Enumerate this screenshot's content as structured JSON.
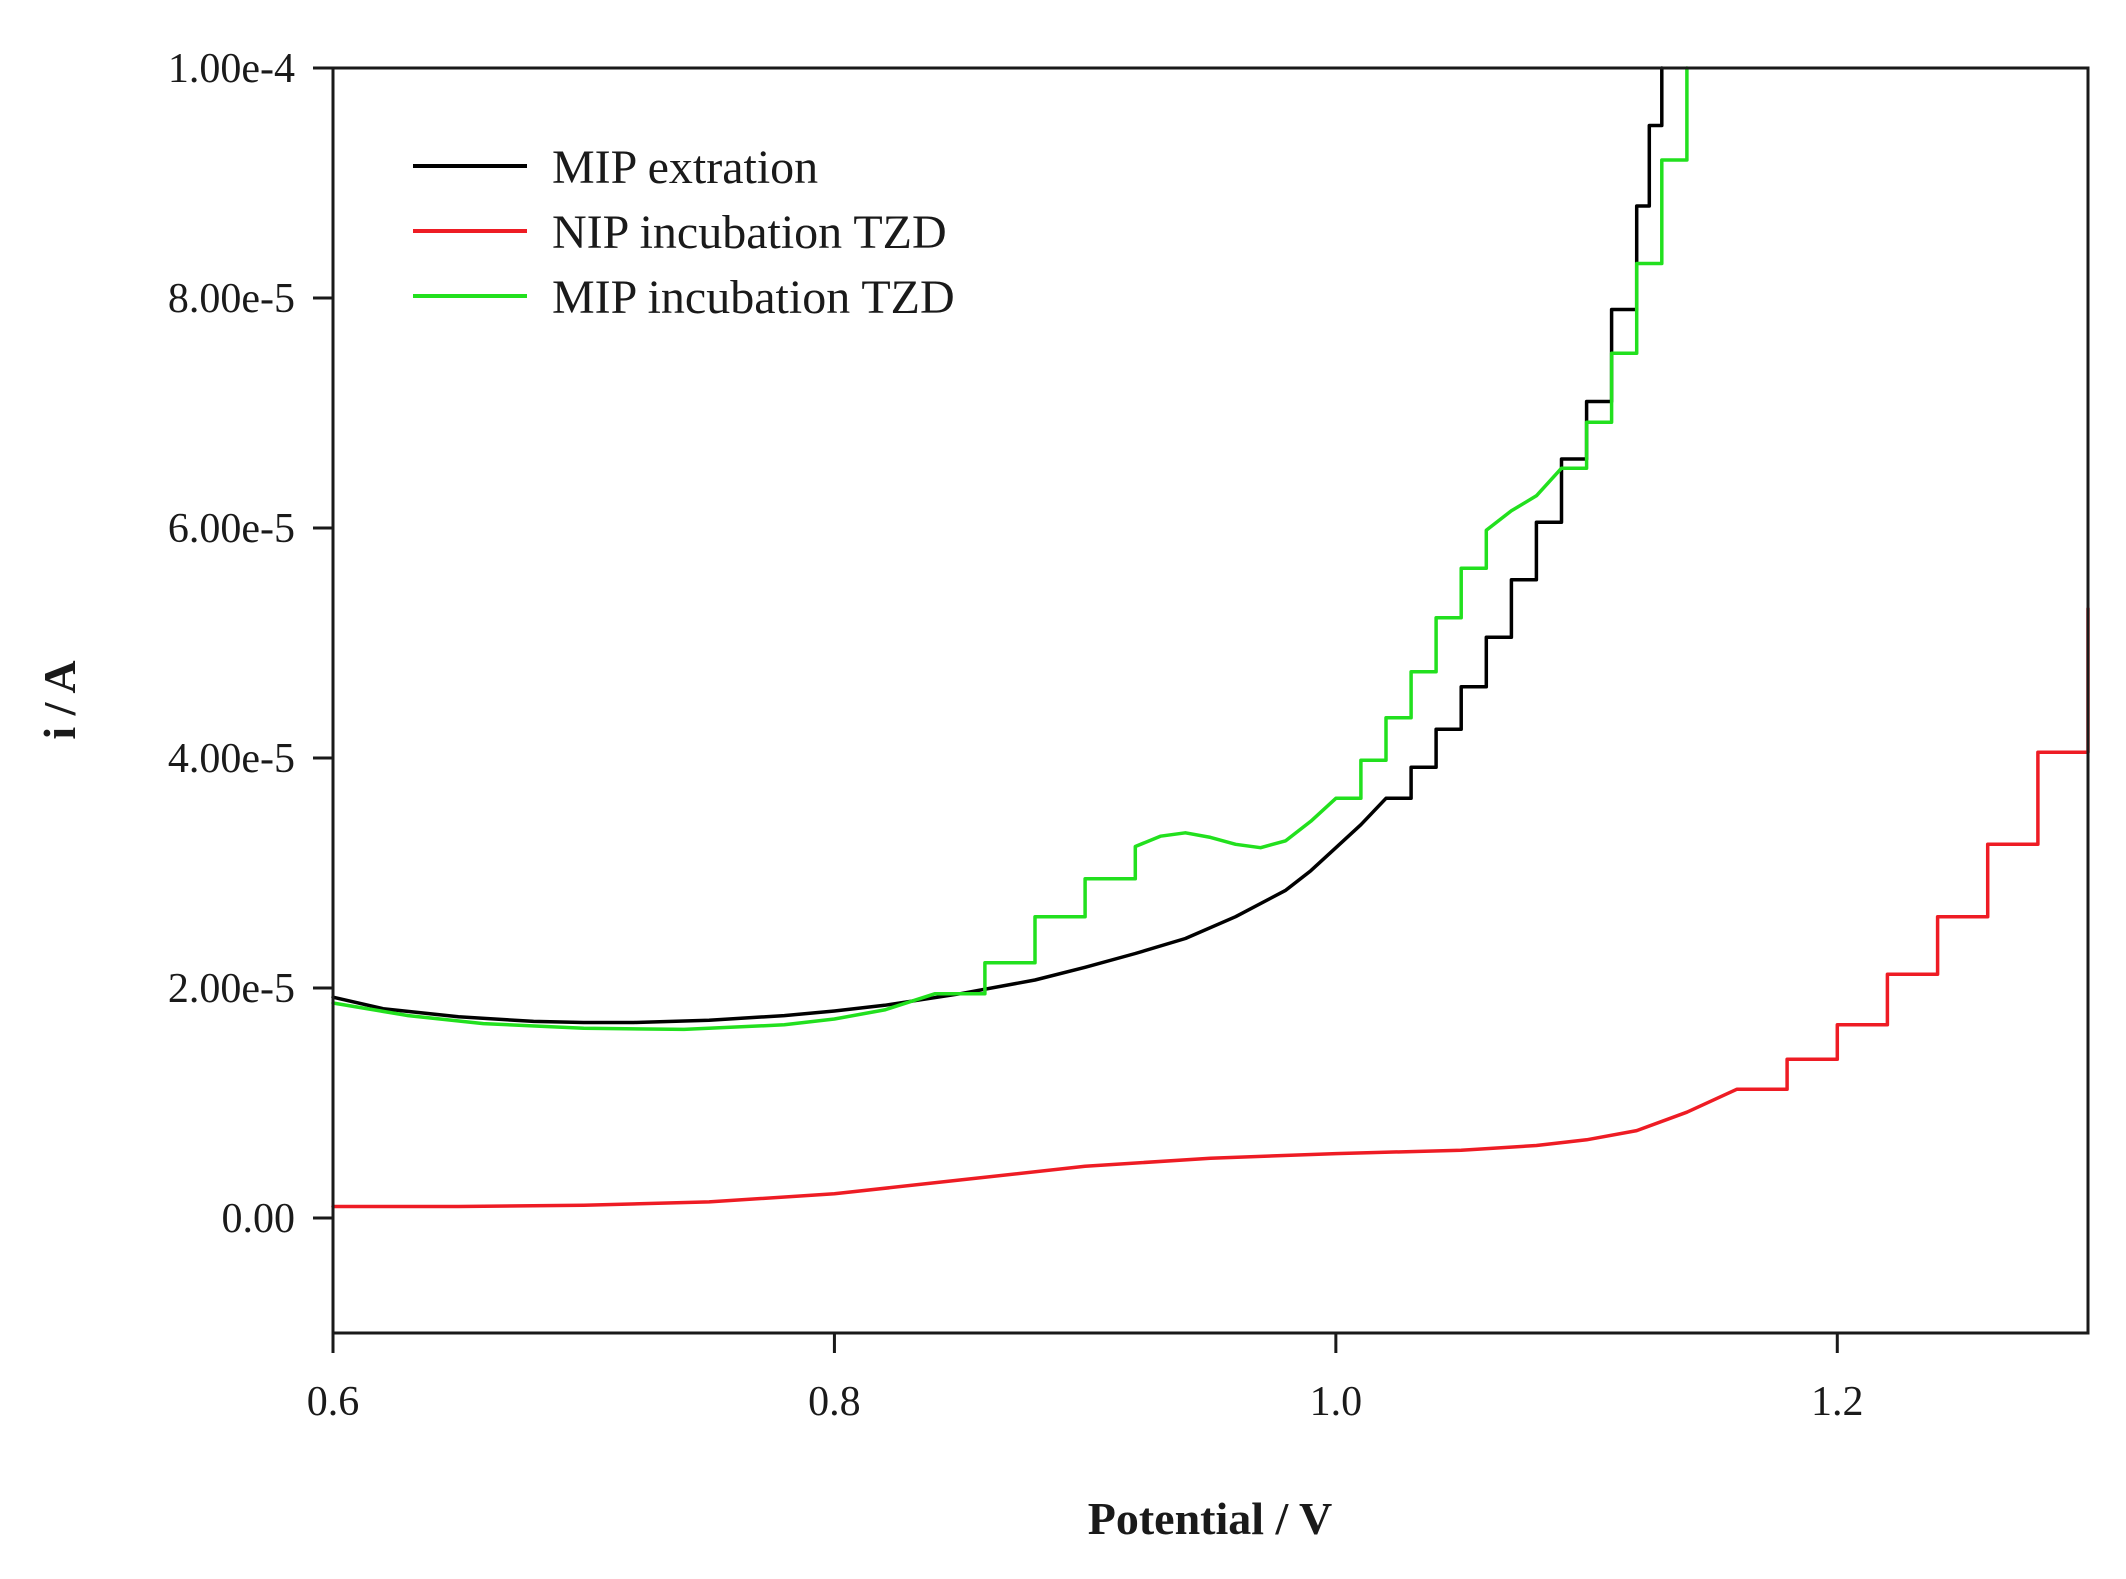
{
  "chart_data": {
    "type": "line",
    "title": "",
    "xlabel": "Potential / V",
    "ylabel": "i / A",
    "xlim": [
      0.6,
      1.3
    ],
    "ylim": [
      -1e-05,
      0.0001
    ],
    "xticks": [
      0.6,
      0.8,
      1.0,
      1.2
    ],
    "xtick_labels": [
      "0.6",
      "0.8",
      "1.0",
      "1.2"
    ],
    "yticks": [
      0,
      2e-05,
      4e-05,
      6e-05,
      8e-05,
      0.0001
    ],
    "ytick_labels": [
      "0.00",
      "2.00e-5",
      "4.00e-5",
      "6.00e-5",
      "8.00e-5",
      "1.00e-4"
    ],
    "grid": false,
    "legend_position": "top-left",
    "series": [
      {
        "name": "MIP extration",
        "color": "#000000",
        "x": [
          0.6,
          0.62,
          0.65,
          0.68,
          0.7,
          0.72,
          0.75,
          0.78,
          0.8,
          0.82,
          0.85,
          0.88,
          0.9,
          0.92,
          0.94,
          0.96,
          0.98,
          0.99,
          1.0,
          1.01,
          1.02,
          1.03,
          1.04,
          1.05,
          1.06,
          1.07,
          1.08,
          1.09,
          1.1,
          1.11,
          1.12,
          1.125,
          1.13
        ],
        "y": [
          1.92e-05,
          1.82e-05,
          1.75e-05,
          1.71e-05,
          1.7e-05,
          1.7e-05,
          1.72e-05,
          1.76e-05,
          1.8e-05,
          1.85e-05,
          1.95e-05,
          2.07e-05,
          2.18e-05,
          2.3e-05,
          2.43e-05,
          2.62e-05,
          2.85e-05,
          3.02e-05,
          3.22e-05,
          3.42e-05,
          3.65e-05,
          3.92e-05,
          4.25e-05,
          4.62e-05,
          5.05e-05,
          5.55e-05,
          6.05e-05,
          6.6e-05,
          7.1e-05,
          7.9e-05,
          8.8e-05,
          9.5e-05,
          0.0001
        ]
      },
      {
        "name": "NIP incubation TZD",
        "color": "#ee1c24",
        "x": [
          0.6,
          0.65,
          0.7,
          0.75,
          0.8,
          0.85,
          0.9,
          0.95,
          1.0,
          1.05,
          1.08,
          1.1,
          1.12,
          1.14,
          1.16,
          1.18,
          1.2,
          1.22,
          1.24,
          1.26,
          1.28,
          1.3
        ],
        "y": [
          1e-06,
          1e-06,
          1.1e-06,
          1.4e-06,
          2.1e-06,
          3.3e-06,
          4.5e-06,
          5.2e-06,
          5.6e-06,
          5.9e-06,
          6.3e-06,
          6.8e-06,
          7.6e-06,
          9.2e-06,
          1.12e-05,
          1.38e-05,
          1.68e-05,
          2.12e-05,
          2.62e-05,
          3.25e-05,
          4.05e-05,
          5.3e-05
        ]
      },
      {
        "name": "MIP incubation TZD",
        "color": "#22e01e",
        "x": [
          0.6,
          0.63,
          0.66,
          0.7,
          0.74,
          0.78,
          0.8,
          0.82,
          0.84,
          0.86,
          0.88,
          0.9,
          0.92,
          0.93,
          0.94,
          0.95,
          0.96,
          0.97,
          0.98,
          0.99,
          1.0,
          1.01,
          1.02,
          1.03,
          1.04,
          1.05,
          1.06,
          1.07,
          1.08,
          1.09,
          1.1,
          1.11,
          1.12,
          1.13,
          1.14
        ],
        "y": [
          1.87e-05,
          1.76e-05,
          1.69e-05,
          1.65e-05,
          1.64e-05,
          1.68e-05,
          1.73e-05,
          1.81e-05,
          1.95e-05,
          2.22e-05,
          2.62e-05,
          2.95e-05,
          3.23e-05,
          3.32e-05,
          3.35e-05,
          3.31e-05,
          3.25e-05,
          3.22e-05,
          3.28e-05,
          3.45e-05,
          3.65e-05,
          3.98e-05,
          4.35e-05,
          4.75e-05,
          5.22e-05,
          5.65e-05,
          5.98e-05,
          6.15e-05,
          6.28e-05,
          6.52e-05,
          6.92e-05,
          7.52e-05,
          8.3e-05,
          9.2e-05,
          0.0001
        ]
      }
    ]
  }
}
